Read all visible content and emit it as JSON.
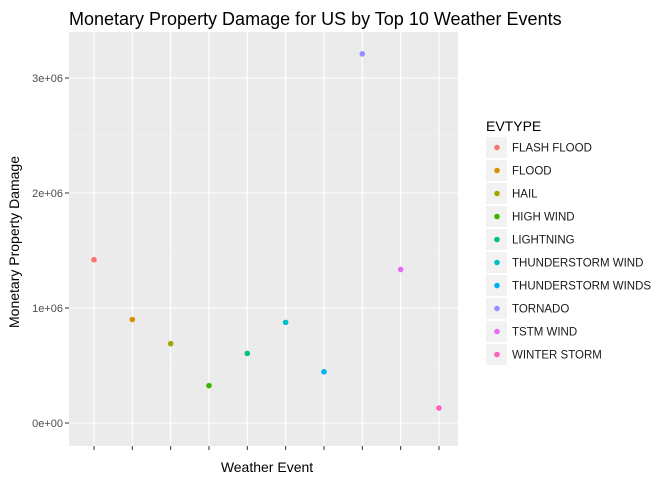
{
  "chart_data": {
    "type": "scatter",
    "title": "Monetary Property Damage for US by Top 10 Weather Events",
    "xlabel": "Weather Event",
    "ylabel": "Monetary Property Damage",
    "ylim": [
      -200000,
      3400000
    ],
    "yticks": [
      0,
      1000000,
      2000000,
      3000000
    ],
    "ytick_labels": [
      "0e+00",
      "1e+06",
      "2e+06",
      "3e+06"
    ],
    "x_tick_labels_shown": false,
    "grid": true,
    "panel_background": "#EBEBEB",
    "legend": {
      "title": "EVTYPE",
      "position": "right"
    },
    "categories": [
      "FLASH FLOOD",
      "FLOOD",
      "HAIL",
      "HIGH WIND",
      "LIGHTNING",
      "THUNDERSTORM WIND",
      "THUNDERSTORM WINDS",
      "TORNADO",
      "TSTM WIND",
      "WINTER STORM"
    ],
    "values": [
      1420000,
      900000,
      690000,
      325000,
      605000,
      875000,
      445000,
      3210000,
      1335000,
      130000
    ],
    "colors": [
      "#F8766D",
      "#D89000",
      "#A3A500",
      "#39B600",
      "#00BF7D",
      "#00BFC4",
      "#00B0F6",
      "#9590FF",
      "#E76BF3",
      "#FF62BC"
    ]
  }
}
